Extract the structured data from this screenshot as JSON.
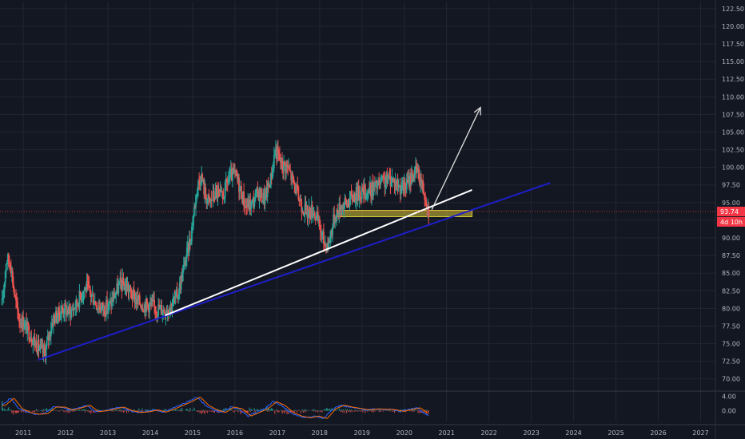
{
  "chart_data": {
    "type": "candlestick",
    "y_axis": {
      "min": 68.5,
      "max": 123.5,
      "ticks": [
        "122.50",
        "120.00",
        "117.50",
        "115.00",
        "112.50",
        "110.00",
        "107.50",
        "105.00",
        "102.50",
        "100.00",
        "97.50",
        "95.00",
        "92.50",
        "90.00",
        "87.50",
        "85.00",
        "82.50",
        "80.00",
        "77.50",
        "75.00",
        "72.50",
        "70.00"
      ],
      "scale": "linear",
      "position": "right"
    },
    "x_axis": {
      "ticks": [
        "2011",
        "2012",
        "2013",
        "2014",
        "2015",
        "2016",
        "2017",
        "2018",
        "2019",
        "2020",
        "2021",
        "2022",
        "2023",
        "2024",
        "2025",
        "2026",
        "2027"
      ],
      "range": [
        2010.45,
        2027.35
      ]
    },
    "price_series": [
      [
        2010.5,
        80.5
      ],
      [
        2010.6,
        87.0
      ],
      [
        2010.7,
        86.5
      ],
      [
        2010.8,
        81.5
      ],
      [
        2010.9,
        78.5
      ],
      [
        2011.0,
        78.0
      ],
      [
        2011.1,
        77.0
      ],
      [
        2011.2,
        76.0
      ],
      [
        2011.35,
        74.5
      ],
      [
        2011.5,
        73.5
      ],
      [
        2011.6,
        76.0
      ],
      [
        2011.7,
        78.5
      ],
      [
        2011.8,
        79.0
      ],
      [
        2011.95,
        80.0
      ],
      [
        2012.1,
        79.5
      ],
      [
        2012.25,
        80.5
      ],
      [
        2012.4,
        82.5
      ],
      [
        2012.5,
        83.0
      ],
      [
        2012.6,
        82.0
      ],
      [
        2012.75,
        80.5
      ],
      [
        2012.9,
        80.0
      ],
      [
        2013.05,
        80.5
      ],
      [
        2013.2,
        82.5
      ],
      [
        2013.3,
        83.5
      ],
      [
        2013.45,
        83.0
      ],
      [
        2013.55,
        82.0
      ],
      [
        2013.7,
        81.0
      ],
      [
        2013.85,
        80.5
      ],
      [
        2014.0,
        80.5
      ],
      [
        2014.15,
        80.0
      ],
      [
        2014.35,
        79.8
      ],
      [
        2014.5,
        80.5
      ],
      [
        2014.65,
        82.0
      ],
      [
        2014.8,
        86.0
      ],
      [
        2014.95,
        90.0
      ],
      [
        2015.1,
        97.0
      ],
      [
        2015.2,
        99.0
      ],
      [
        2015.3,
        96.0
      ],
      [
        2015.4,
        95.0
      ],
      [
        2015.55,
        96.5
      ],
      [
        2015.7,
        95.5
      ],
      [
        2015.85,
        98.5
      ],
      [
        2016.0,
        99.0
      ],
      [
        2016.1,
        97.5
      ],
      [
        2016.25,
        94.5
      ],
      [
        2016.4,
        94.8
      ],
      [
        2016.55,
        96.5
      ],
      [
        2016.7,
        95.5
      ],
      [
        2016.85,
        98.5
      ],
      [
        2016.95,
        102.5
      ],
      [
        2017.0,
        102.0
      ],
      [
        2017.1,
        100.5
      ],
      [
        2017.25,
        100.0
      ],
      [
        2017.4,
        97.5
      ],
      [
        2017.55,
        95.0
      ],
      [
        2017.7,
        93.5
      ],
      [
        2017.85,
        94.0
      ],
      [
        2017.95,
        92.5
      ],
      [
        2018.1,
        89.5
      ],
      [
        2018.2,
        89.0
      ],
      [
        2018.35,
        93.0
      ],
      [
        2018.5,
        94.5
      ],
      [
        2018.65,
        95.0
      ],
      [
        2018.8,
        96.0
      ],
      [
        2018.95,
        96.5
      ],
      [
        2019.1,
        96.5
      ],
      [
        2019.25,
        97.0
      ],
      [
        2019.4,
        97.5
      ],
      [
        2019.55,
        98.0
      ],
      [
        2019.7,
        98.5
      ],
      [
        2019.85,
        97.5
      ],
      [
        2020.0,
        97.0
      ],
      [
        2020.1,
        98.0
      ],
      [
        2020.2,
        99.0
      ],
      [
        2020.3,
        99.5
      ],
      [
        2020.4,
        98.0
      ],
      [
        2020.5,
        96.0
      ],
      [
        2020.58,
        93.8
      ]
    ],
    "last_price": {
      "value": 93.74,
      "label": "93.74",
      "timer": "4d 10h"
    },
    "trend_lines": [
      {
        "color": "#1e1ec8",
        "from": [
          2011.35,
          72.7
        ],
        "to": [
          2023.45,
          97.8
        ]
      },
      {
        "color": "#ffffff",
        "from": [
          2014.35,
          79.0
        ],
        "to": [
          2021.6,
          96.8
        ]
      }
    ],
    "arrow": {
      "color": "#e0e0e0",
      "from": [
        2020.65,
        94.0
      ],
      "to": [
        2021.8,
        108.5
      ]
    },
    "support_zone": {
      "color": "#ffeb3b",
      "x": [
        2018.4,
        2021.6
      ],
      "y": [
        93.0,
        93.9
      ]
    },
    "indicator": {
      "ticks": [
        "4.00",
        "0.00"
      ],
      "values": [
        [
          2010.5,
          1.5
        ],
        [
          2010.7,
          3.5
        ],
        [
          2010.9,
          0.5
        ],
        [
          2011.1,
          -0.5
        ],
        [
          2011.3,
          -1.0
        ],
        [
          2011.5,
          -0.8
        ],
        [
          2011.7,
          1.0
        ],
        [
          2011.9,
          1.0
        ],
        [
          2012.1,
          0.2
        ],
        [
          2012.3,
          0.8
        ],
        [
          2012.5,
          1.5
        ],
        [
          2012.7,
          -0.3
        ],
        [
          2012.9,
          0.0
        ],
        [
          2013.1,
          0.5
        ],
        [
          2013.3,
          1.0
        ],
        [
          2013.5,
          0.0
        ],
        [
          2013.7,
          -0.5
        ],
        [
          2013.9,
          -0.3
        ],
        [
          2014.1,
          0.2
        ],
        [
          2014.3,
          -0.4
        ],
        [
          2014.5,
          0.5
        ],
        [
          2014.7,
          1.5
        ],
        [
          2014.9,
          2.5
        ],
        [
          2015.1,
          3.8
        ],
        [
          2015.3,
          1.5
        ],
        [
          2015.5,
          0.2
        ],
        [
          2015.7,
          -0.5
        ],
        [
          2015.9,
          1.0
        ],
        [
          2016.1,
          0.5
        ],
        [
          2016.3,
          -1.5
        ],
        [
          2016.5,
          -0.5
        ],
        [
          2016.7,
          0.5
        ],
        [
          2016.9,
          2.5
        ],
        [
          2017.1,
          1.5
        ],
        [
          2017.3,
          -0.5
        ],
        [
          2017.5,
          -1.5
        ],
        [
          2017.7,
          -2.0
        ],
        [
          2017.9,
          -1.5
        ],
        [
          2018.1,
          -2.2
        ],
        [
          2018.3,
          0.5
        ],
        [
          2018.5,
          1.5
        ],
        [
          2018.7,
          1.0
        ],
        [
          2018.9,
          0.6
        ],
        [
          2019.1,
          0.2
        ],
        [
          2019.3,
          0.5
        ],
        [
          2019.5,
          0.4
        ],
        [
          2019.7,
          0.3
        ],
        [
          2019.9,
          -0.2
        ],
        [
          2020.1,
          0.3
        ],
        [
          2020.3,
          0.8
        ],
        [
          2020.45,
          -0.5
        ],
        [
          2020.58,
          -1.5
        ]
      ]
    },
    "colors": {
      "background": "#131722",
      "grid": "#232632",
      "up": "#26a69a",
      "down": "#ef5350",
      "last_price": "#f23645",
      "axis_text": "#b2b5be"
    },
    "grid": true
  }
}
